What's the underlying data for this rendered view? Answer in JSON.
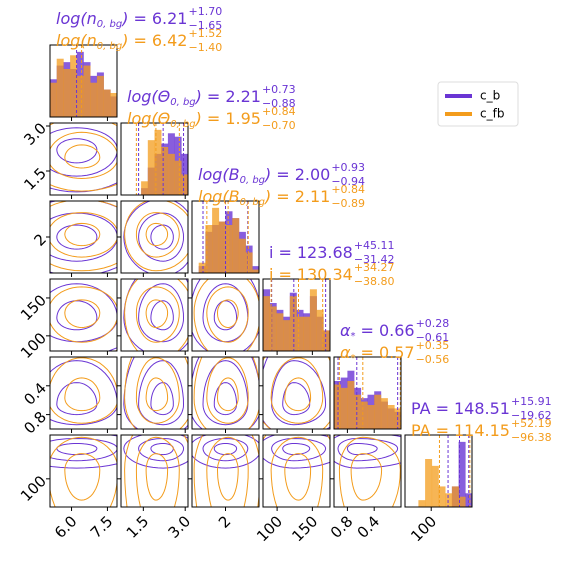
{
  "chart_data": {
    "type": "corner",
    "legend": "upper right",
    "series": [
      {
        "name": "c_b",
        "color": "#6a35d4"
      },
      {
        "name": "c_fb",
        "color": "#f39c1c"
      }
    ],
    "params": [
      {
        "label_main": "log(n",
        "label_sub": "0, bg",
        "label_end": ")",
        "separator": "=",
        "xlim": [
          5.1,
          7.9
        ],
        "ticks": [
          {
            "value": 6,
            "label": "6.0"
          },
          7.5
        ],
        "bins": [
          5.1,
          5.38,
          5.66,
          5.94,
          6.22,
          6.5,
          6.78,
          7.06,
          7.34,
          7.62,
          7.9
        ],
        "stats": [
          {
            "median": 6.21,
            "plus": 1.7,
            "minus": 1.65,
            "median_label": "6.21",
            "plus_label": "+1.70",
            "minus_label": "−1.65",
            "counts": [
              0.55,
              0.75,
              0.8,
              0.7,
              0.95,
              0.8,
              0.6,
              0.65,
              0.4,
              0.3
            ]
          },
          {
            "median": 6.42,
            "plus": 1.52,
            "minus": 1.4,
            "median_label": "6.42",
            "plus_label": "+1.52",
            "minus_label": "−1.40",
            "counts": [
              0.5,
              0.85,
              0.7,
              0.9,
              0.6,
              0.75,
              0.5,
              0.6,
              0.4,
              0.35
            ]
          }
        ]
      },
      {
        "label_main": "log(Θ",
        "label_sub": "0, bg",
        "label_end": ")",
        "separator": "=",
        "xlim": [
          0.7,
          3.1
        ],
        "ticks": [
          1.5,
          {
            "value": 3,
            "label": "3.0"
          }
        ],
        "bins": [
          0.7,
          0.94,
          1.18,
          1.42,
          1.66,
          1.9,
          2.14,
          2.38,
          2.62,
          2.86,
          3.1
        ],
        "stats": [
          {
            "median": 2.21,
            "plus": 0.73,
            "minus": 0.88,
            "median_label": "2.21",
            "plus_label": "+0.73",
            "minus_label": "−0.88",
            "counts": [
              0,
              0,
              0,
              0.1,
              0.4,
              0.6,
              0.75,
              0.9,
              0.85,
              0.6
            ]
          },
          {
            "median": 1.95,
            "plus": 0.84,
            "minus": 0.7,
            "median_label": "1.95",
            "plus_label": "+0.84",
            "minus_label": "−0.70",
            "counts": [
              0,
              0,
              0,
              0.2,
              0.8,
              0.95,
              0.7,
              0.6,
              0.5,
              0.3
            ]
          }
        ]
      },
      {
        "label_main": "log(B",
        "label_sub": "0, bg",
        "label_end": ")",
        "separator": "=",
        "xlim": [
          0.6,
          3.4
        ],
        "ticks": [
          2
        ],
        "bins": [
          0.6,
          0.88,
          1.16,
          1.44,
          1.72,
          2.0,
          2.28,
          2.56,
          2.84,
          3.12,
          3.4
        ],
        "stats": [
          {
            "median": 2.0,
            "plus": 0.93,
            "minus": 0.94,
            "median_label": "2.00",
            "plus_label": "+0.93",
            "minus_label": "−0.94",
            "counts": [
              0,
              0.1,
              0.6,
              0.7,
              0.75,
              0.9,
              0.8,
              0.6,
              0.4,
              0.1
            ]
          },
          {
            "median": 2.11,
            "plus": 0.84,
            "minus": 0.89,
            "median_label": "2.11",
            "plus_label": "+0.84",
            "minus_label": "−0.89",
            "counts": [
              0,
              0.15,
              0.7,
              0.95,
              0.75,
              0.7,
              0.8,
              0.5,
              0.3,
              0.05
            ]
          }
        ]
      },
      {
        "label_main": "i",
        "separator": "=",
        "xlim": [
          80,
          175
        ],
        "ticks": [
          100,
          150
        ],
        "bins": [
          80,
          89.5,
          99,
          108.5,
          118,
          127.5,
          137,
          146.5,
          156,
          165.5,
          175
        ],
        "stats": [
          {
            "median": 123.68,
            "plus": 45.11,
            "minus": 31.42,
            "median_label": "123.68",
            "plus_label": "+45.11",
            "minus_label": "−31.42",
            "counts": [
              0.9,
              0.7,
              0.6,
              0.5,
              0.85,
              0.6,
              0.55,
              0.8,
              0.5,
              0.3
            ]
          },
          {
            "median": 130.34,
            "plus": 34.27,
            "minus": 38.8,
            "median_label": "130.34",
            "plus_label": "+34.27",
            "minus_label": "−38.80",
            "counts": [
              0.8,
              0.65,
              0.55,
              0.45,
              0.8,
              0.5,
              0.5,
              0.9,
              0.6,
              0.3
            ]
          }
        ]
      },
      {
        "label_main": "α",
        "label_sub": "*",
        "separator": "=",
        "xlim": [
          1.0,
          0.0
        ],
        "ticks": [
          0.8,
          0.4
        ],
        "bins": [
          1.0,
          0.9,
          0.8,
          0.7,
          0.6,
          0.5,
          0.4,
          0.3,
          0.2,
          0.1,
          0.0
        ],
        "stats": [
          {
            "median": 0.66,
            "plus": 0.28,
            "minus": 0.61,
            "median_label": "0.66",
            "plus_label": "+0.28",
            "minus_label": "−0.61",
            "counts": [
              0.7,
              0.75,
              0.85,
              0.6,
              0.45,
              0.5,
              0.55,
              0.4,
              0.3,
              0.25
            ]
          },
          {
            "median": 0.57,
            "plus": 0.35,
            "minus": 0.56,
            "median_label": "0.57",
            "plus_label": "+0.35",
            "minus_label": "−0.56",
            "counts": [
              0.65,
              0.6,
              0.7,
              0.5,
              0.4,
              0.35,
              0.5,
              0.45,
              0.35,
              0.3
            ]
          }
        ]
      },
      {
        "label_main": "PA",
        "separator": "=",
        "xlim": [
          55,
          170
        ],
        "ticks": [
          100
        ],
        "bins": [
          55,
          66.5,
          78,
          89.5,
          101,
          112.5,
          124,
          135.5,
          147,
          158.5,
          170
        ],
        "stats": [
          {
            "median": 148.51,
            "plus": 15.91,
            "minus": 19.62,
            "median_label": "148.51",
            "plus_label": "+15.91",
            "minus_label": "−19.62",
            "counts": [
              0,
              0,
              0,
              0,
              0,
              0,
              0,
              0.3,
              0.95,
              0.2
            ]
          },
          {
            "median": 114.15,
            "plus": 52.19,
            "minus": 96.38,
            "median_label": "114.15",
            "plus_label": "+52.19",
            "minus_label": "−96.38",
            "counts": [
              0,
              0,
              0.1,
              0.7,
              0.6,
              0.3,
              0.2,
              0.3,
              0.15,
              0
            ]
          }
        ]
      }
    ]
  }
}
